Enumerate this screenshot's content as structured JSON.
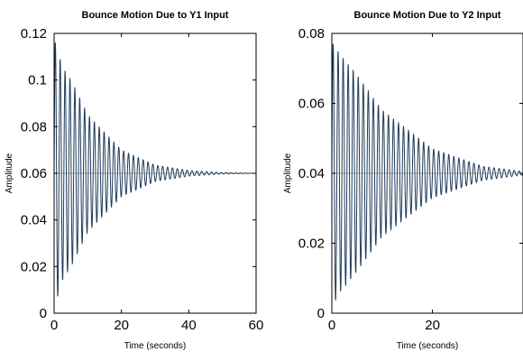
{
  "chart_data": [
    {
      "type": "line",
      "title": "Bounce Motion Due to Y1 Input",
      "xlabel": "Time (seconds)",
      "ylabel": "Amplitude",
      "xlim": [
        0,
        60
      ],
      "ylim": [
        0,
        0.12
      ],
      "xticks": [
        0,
        20,
        40,
        60
      ],
      "xtick_labels": [
        "0",
        "20",
        "40",
        "60"
      ],
      "yticks": [
        0,
        0.02,
        0.04,
        0.06,
        0.08,
        0.1,
        0.12
      ],
      "ytick_labels": [
        "0",
        "0.02",
        "0.04",
        "0.06",
        "0.08",
        "0.1",
        "0.12"
      ],
      "grid": false,
      "reference_lines": [
        {
          "y": 0.06
        }
      ],
      "series": [
        {
          "color": "#1f3b5a",
          "values": [
            {
              "x": 0.6,
              "y": 0.116
            },
            {
              "x": 1.2,
              "y": 0.008
            },
            {
              "x": 2.0,
              "y": 0.108
            },
            {
              "x": 2.7,
              "y": 0.015
            },
            {
              "x": 5,
              "y": 0.1
            },
            {
              "x": 10,
              "y": 0.085
            },
            {
              "x": 20,
              "y": 0.07
            },
            {
              "x": 30,
              "y": 0.0635
            },
            {
              "x": 40,
              "y": 0.0612
            },
            {
              "x": 50,
              "y": 0.0603
            },
            {
              "x": 60,
              "y": 0.06
            }
          ]
        }
      ]
    },
    {
      "type": "line",
      "title": "Bounce Motion Due to Y2 Input",
      "xlabel": "Time (seconds)",
      "ylabel": "Amplitude",
      "xlim": [
        0,
        38
      ],
      "ylim": [
        0,
        0.08
      ],
      "xticks": [
        0,
        20
      ],
      "xtick_labels": [
        "0",
        "20"
      ],
      "yticks": [
        0,
        0.02,
        0.04,
        0.06,
        0.08
      ],
      "ytick_labels": [
        "0",
        "0.02",
        "0.04",
        "0.06",
        "0.08"
      ],
      "grid": false,
      "reference_lines": [
        {
          "y": 0.04
        }
      ],
      "series": [
        {
          "color": "#1f3b5a",
          "values": [
            {
              "x": 0.4,
              "y": 0.077
            },
            {
              "x": 0.9,
              "y": 0.004
            },
            {
              "x": 1.5,
              "y": 0.074
            },
            {
              "x": 2.2,
              "y": 0.007
            },
            {
              "x": 5,
              "y": 0.068
            },
            {
              "x": 10,
              "y": 0.058
            },
            {
              "x": 20,
              "y": 0.047
            },
            {
              "x": 30,
              "y": 0.042
            },
            {
              "x": 38,
              "y": 0.0405
            }
          ]
        }
      ]
    }
  ]
}
